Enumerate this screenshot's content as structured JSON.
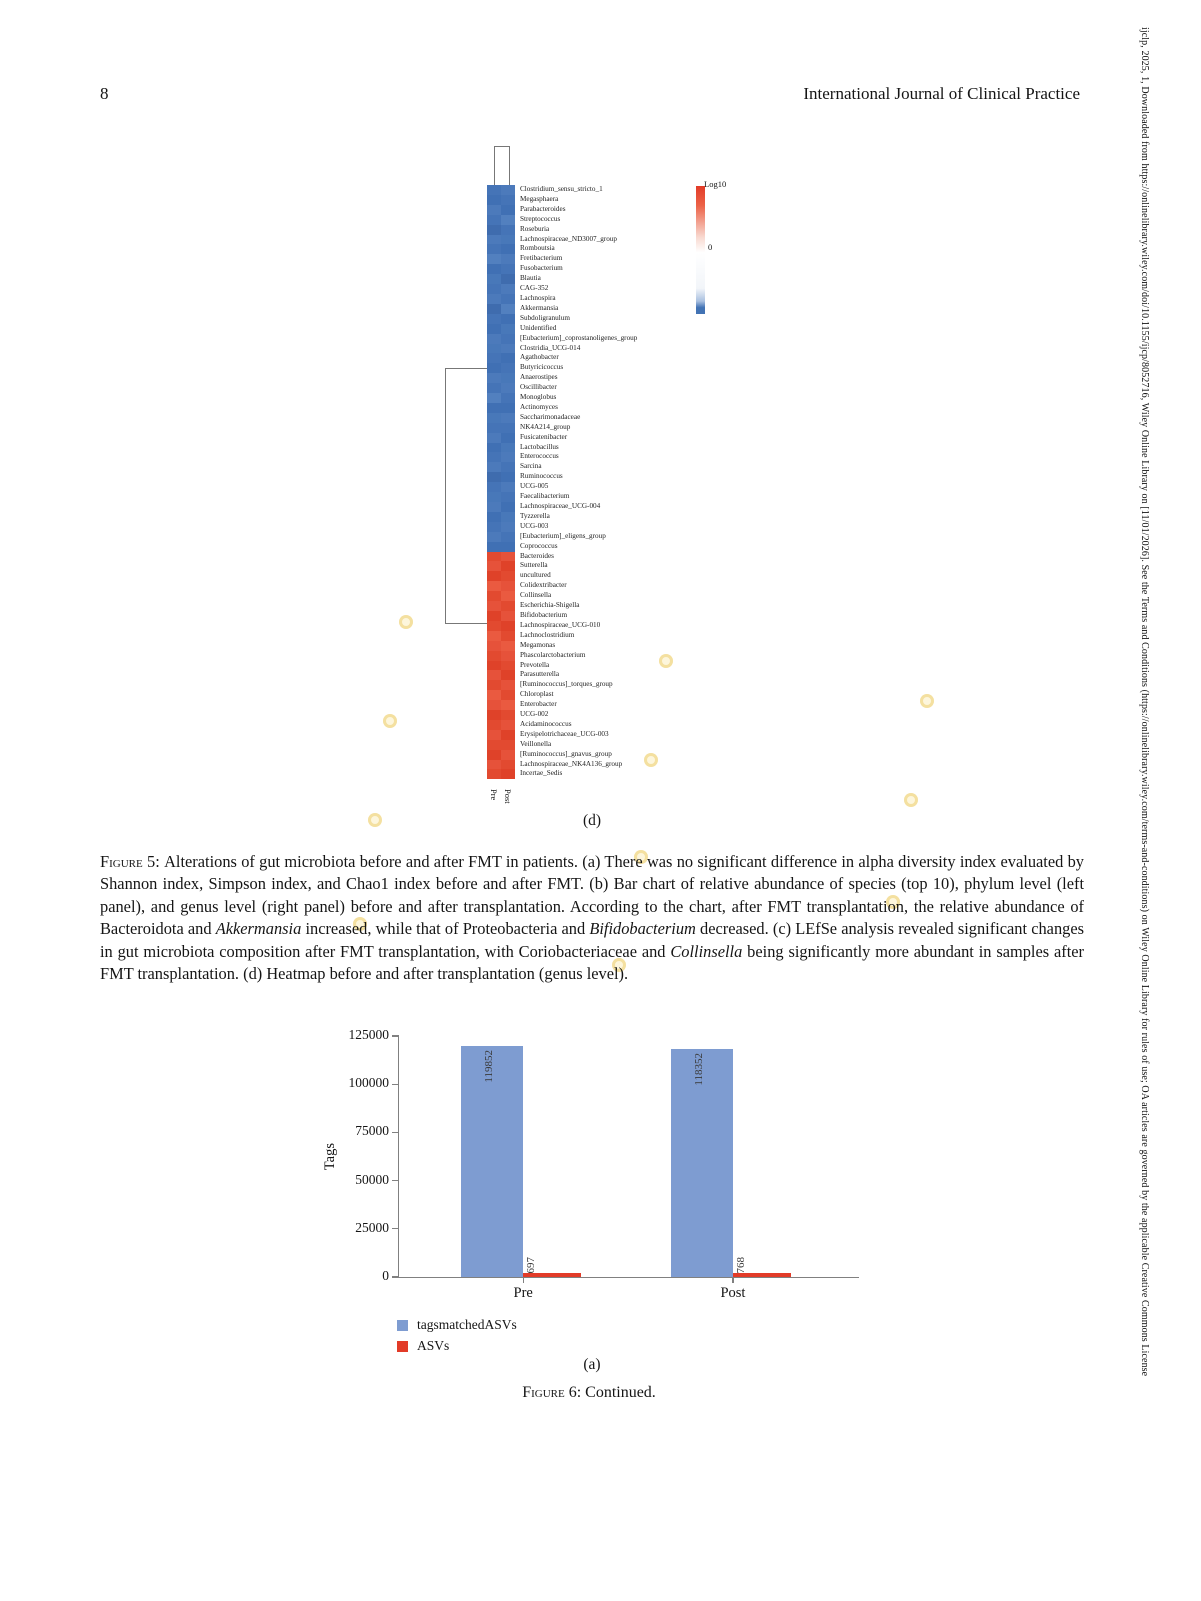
{
  "page": {
    "number": "8",
    "journal": "International Journal of Clinical Practice"
  },
  "sidebar_note": "ijclp, 2025, 1, Downloaded from https://onlinelibrary.wiley.com/doi/10.1155/ijcp/8052716, Wiley Online Library on [11/01/2026]. See the Terms and Conditions (https://onlinelibrary.wiley.com/terms-and-conditions) on Wiley Online Library for rules of use; OA articles are governed by the applicable Creative Commons License",
  "figure5": {
    "panel_label": "(d)",
    "caption_segments": [
      {
        "t": "Figure 5: ",
        "sc": true
      },
      {
        "t": "Alterations of gut microbiota before and after FMT in patients. (a) There was no significant difference in alpha diversity index evaluated by Shannon index, Simpson index, and Chao1 index before and after FMT. (b) Bar chart of relative abundance of species (top 10), phylum level (left panel), and genus level (right panel) before and after transplantation. According to the chart, after FMT transplantation, the relative abundance of Bacteroidota and "
      },
      {
        "t": "Akkermansia",
        "i": true
      },
      {
        "t": " increased, while that of Proteobacteria and "
      },
      {
        "t": "Bifidobacterium",
        "i": true
      },
      {
        "t": " decreased. (c) LEfSe analysis revealed significant changes in gut microbiota composition after FMT transplantation, with Coriobacteriaceae and "
      },
      {
        "t": "Collinsella",
        "i": true
      },
      {
        "t": " being significantly more abundant in samples after FMT transplantation. (d) Heatmap before and after transplantation (genus level)."
      }
    ],
    "heatmap": {
      "col_labels": [
        "Pre",
        "Post"
      ],
      "legend": {
        "title": "Log10",
        "zero": "0",
        "high_color": "#e23b28",
        "mid_color": "#ffffff",
        "low_color": "#4273b4"
      },
      "rows": [
        {
          "label": "Clostridium_sensu_stricto_1",
          "pre": "#4574b7",
          "post": "#4c7abb"
        },
        {
          "label": "Megasphaera",
          "pre": "#4070b4",
          "post": "#4574b7"
        },
        {
          "label": "Parabacteroides",
          "pre": "#4c7abb",
          "post": "#4070b4"
        },
        {
          "label": "Streptococcus",
          "pre": "#4574b7",
          "post": "#5280bf"
        },
        {
          "label": "Roseburia",
          "pre": "#3f6cae",
          "post": "#4574b7"
        },
        {
          "label": "Lachnospiraceae_ND3007_group",
          "pre": "#4c7abb",
          "post": "#4878b9"
        },
        {
          "label": "Romboutsia",
          "pre": "#4574b7",
          "post": "#4070b4"
        },
        {
          "label": "Fretibacterium",
          "pre": "#5280bf",
          "post": "#4c7abb"
        },
        {
          "label": "Fusobacterium",
          "pre": "#4070b4",
          "post": "#4574b7"
        },
        {
          "label": "Blautia",
          "pre": "#4878b9",
          "post": "#3f6cae"
        },
        {
          "label": "CAG-352",
          "pre": "#4574b7",
          "post": "#4c7abb"
        },
        {
          "label": "Lachnospira",
          "pre": "#4c7abb",
          "post": "#4574b7"
        },
        {
          "label": "Akkermansia",
          "pre": "#3f6cae",
          "post": "#5280bf"
        },
        {
          "label": "Subdoligranulum",
          "pre": "#4574b7",
          "post": "#4070b4"
        },
        {
          "label": "Unidentified",
          "pre": "#4070b4",
          "post": "#4878b9"
        },
        {
          "label": "[Eubacterium]_coprostanoligenes_group",
          "pre": "#4c7abb",
          "post": "#4574b7"
        },
        {
          "label": "Clostridia_UCG-014",
          "pre": "#4878b9",
          "post": "#4c7abb"
        },
        {
          "label": "Agathobacter",
          "pre": "#4574b7",
          "post": "#4070b4"
        },
        {
          "label": "Butyricicoccus",
          "pre": "#4070b4",
          "post": "#4574b7"
        },
        {
          "label": "Anaerostipes",
          "pre": "#4c7abb",
          "post": "#4878b9"
        },
        {
          "label": "Oscillibacter",
          "pre": "#4574b7",
          "post": "#4c7abb"
        },
        {
          "label": "Monoglobus",
          "pre": "#5280bf",
          "post": "#4574b7"
        },
        {
          "label": "Actinomyces",
          "pre": "#4070b4",
          "post": "#4070b4"
        },
        {
          "label": "Saccharimonadaceae",
          "pre": "#4878b9",
          "post": "#4c7abb"
        },
        {
          "label": "NK4A214_group",
          "pre": "#4574b7",
          "post": "#4574b7"
        },
        {
          "label": "Fusicatenibacter",
          "pre": "#4c7abb",
          "post": "#4070b4"
        },
        {
          "label": "Lactobacillus",
          "pre": "#4070b4",
          "post": "#4878b9"
        },
        {
          "label": "Enterococcus",
          "pre": "#4574b7",
          "post": "#4c7abb"
        },
        {
          "label": "Sarcina",
          "pre": "#4c7abb",
          "post": "#4574b7"
        },
        {
          "label": "Ruminococcus",
          "pre": "#3f6cae",
          "post": "#4070b4"
        },
        {
          "label": "UCG-005",
          "pre": "#4574b7",
          "post": "#4c7abb"
        },
        {
          "label": "Faecalibacterium",
          "pre": "#4878b9",
          "post": "#4574b7"
        },
        {
          "label": "Lachnospiraceae_UCG-004",
          "pre": "#4c7abb",
          "post": "#4070b4"
        },
        {
          "label": "Tyzzerella",
          "pre": "#4070b4",
          "post": "#4878b9"
        },
        {
          "label": "UCG-003",
          "pre": "#4574b7",
          "post": "#4c7abb"
        },
        {
          "label": "[Eubacterium]_eligens_group",
          "pre": "#4c7abb",
          "post": "#4574b7"
        },
        {
          "label": "Coprococcus",
          "pre": "#4070b4",
          "post": "#4070b4"
        },
        {
          "label": "Bacteroides",
          "pre": "#e24a30",
          "post": "#e6523a"
        },
        {
          "label": "Sutterella",
          "pre": "#e6523a",
          "post": "#df4229"
        },
        {
          "label": "uncultured",
          "pre": "#df4229",
          "post": "#e24a30"
        },
        {
          "label": "Colidextribacter",
          "pre": "#ea5a40",
          "post": "#e6523a"
        },
        {
          "label": "Collinsella",
          "pre": "#e24a30",
          "post": "#ea5a40"
        },
        {
          "label": "Escherichia-Shigella",
          "pre": "#e6523a",
          "post": "#e24a30"
        },
        {
          "label": "Bifidobacterium",
          "pre": "#df4229",
          "post": "#e6523a"
        },
        {
          "label": "Lachnospiraceae_UCG-010",
          "pre": "#e24a30",
          "post": "#df4229"
        },
        {
          "label": "Lachnoclostridium",
          "pre": "#ea5a40",
          "post": "#e24a30"
        },
        {
          "label": "Megamonas",
          "pre": "#e6523a",
          "post": "#ea5a40"
        },
        {
          "label": "Phascolarctobacterium",
          "pre": "#e24a30",
          "post": "#e6523a"
        },
        {
          "label": "Prevotella",
          "pre": "#df4229",
          "post": "#e24a30"
        },
        {
          "label": "Parasutterella",
          "pre": "#e6523a",
          "post": "#df4229"
        },
        {
          "label": "[Ruminococcus]_torques_group",
          "pre": "#e24a30",
          "post": "#e6523a"
        },
        {
          "label": "Chloroplast",
          "pre": "#ea5a40",
          "post": "#e24a30"
        },
        {
          "label": "Enterobacter",
          "pre": "#e6523a",
          "post": "#ea5a40"
        },
        {
          "label": "UCG-002",
          "pre": "#df4229",
          "post": "#e24a30"
        },
        {
          "label": "Acidaminococcus",
          "pre": "#e24a30",
          "post": "#e6523a"
        },
        {
          "label": "Erysipelotrichaceae_UCG-003",
          "pre": "#e6523a",
          "post": "#df4229"
        },
        {
          "label": "Veillonella",
          "pre": "#e24a30",
          "post": "#e24a30"
        },
        {
          "label": "[Ruminococcus]_gnavus_group",
          "pre": "#df4229",
          "post": "#e6523a"
        },
        {
          "label": "Lachnospiraceae_NK4A136_group",
          "pre": "#e6523a",
          "post": "#e24a30"
        },
        {
          "label": "Incertae_Sedis",
          "pre": "#e24a30",
          "post": "#df4229"
        }
      ]
    }
  },
  "figure6": {
    "panel_label": "(a)",
    "caption_segments": [
      {
        "t": "Figure 6: ",
        "sc": true
      },
      {
        "t": "Continued."
      }
    ],
    "chart_data": {
      "type": "bar",
      "categories": [
        "Pre",
        "Post"
      ],
      "series": [
        {
          "name": "tagsmatchedASVs",
          "color": "#7e9cd1",
          "values": [
            119852,
            118352
          ]
        },
        {
          "name": "ASVs",
          "color": "#e23b28",
          "values": [
            697,
            768
          ]
        }
      ],
      "title": "",
      "xlabel": "",
      "ylabel": "Tags",
      "ylim": [
        0,
        125000
      ],
      "yticks": [
        0,
        25000,
        50000,
        75000,
        100000,
        125000
      ],
      "legend_position": "bottom-left",
      "grid": false
    }
  }
}
